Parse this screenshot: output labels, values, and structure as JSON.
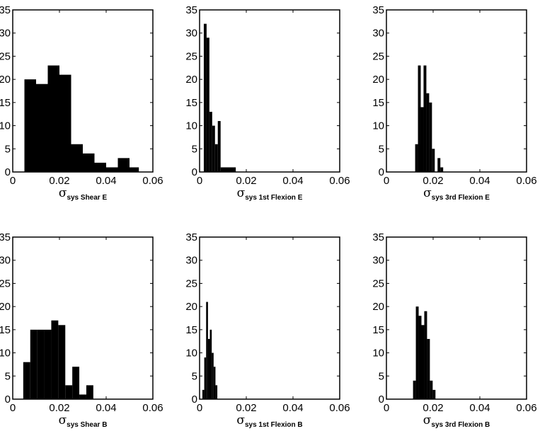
{
  "chart_data": [
    {
      "type": "bar",
      "xlabel_symbol": "σ",
      "xlabel_subscript": "sys Shear E",
      "xlim": [
        0,
        0.06
      ],
      "ylim": [
        0,
        35
      ],
      "xticks": [
        "0",
        "0.02",
        "0.04",
        "0.06"
      ],
      "yticks": [
        "0",
        "5",
        "10",
        "15",
        "20",
        "25",
        "30",
        "35"
      ],
      "bins": [
        {
          "x0": 0.005,
          "x1": 0.01,
          "y": 20
        },
        {
          "x0": 0.01,
          "x1": 0.015,
          "y": 19
        },
        {
          "x0": 0.015,
          "x1": 0.02,
          "y": 23
        },
        {
          "x0": 0.02,
          "x1": 0.025,
          "y": 21
        },
        {
          "x0": 0.025,
          "x1": 0.03,
          "y": 6
        },
        {
          "x0": 0.03,
          "x1": 0.035,
          "y": 4
        },
        {
          "x0": 0.035,
          "x1": 0.04,
          "y": 2
        },
        {
          "x0": 0.04,
          "x1": 0.045,
          "y": 1
        },
        {
          "x0": 0.045,
          "x1": 0.05,
          "y": 3
        },
        {
          "x0": 0.05,
          "x1": 0.054,
          "y": 1
        }
      ]
    },
    {
      "type": "bar",
      "xlabel_symbol": "σ",
      "xlabel_subscript": "sys 1st Flexion E",
      "xlim": [
        0,
        0.06
      ],
      "ylim": [
        0,
        35
      ],
      "xticks": [
        "0",
        "0.02",
        "0.04",
        "0.06"
      ],
      "yticks": [
        "0",
        "5",
        "10",
        "15",
        "20",
        "25",
        "30",
        "35"
      ],
      "bins": [
        {
          "x0": 0.0018,
          "x1": 0.003,
          "y": 32
        },
        {
          "x0": 0.003,
          "x1": 0.0042,
          "y": 29
        },
        {
          "x0": 0.0042,
          "x1": 0.0054,
          "y": 13
        },
        {
          "x0": 0.0054,
          "x1": 0.0066,
          "y": 10
        },
        {
          "x0": 0.0066,
          "x1": 0.0078,
          "y": 6
        },
        {
          "x0": 0.0078,
          "x1": 0.009,
          "y": 11
        },
        {
          "x0": 0.009,
          "x1": 0.0155,
          "y": 1
        }
      ]
    },
    {
      "type": "bar",
      "xlabel_symbol": "σ",
      "xlabel_subscript": "sys 3rd Flexion E",
      "xlim": [
        0,
        0.06
      ],
      "ylim": [
        0,
        35
      ],
      "xticks": [
        "0",
        "0.02",
        "0.04",
        "0.06"
      ],
      "yticks": [
        "0",
        "5",
        "10",
        "15",
        "20",
        "25",
        "30",
        "35"
      ],
      "bins": [
        {
          "x0": 0.0123,
          "x1": 0.0135,
          "y": 6
        },
        {
          "x0": 0.0135,
          "x1": 0.0147,
          "y": 23
        },
        {
          "x0": 0.0147,
          "x1": 0.0159,
          "y": 14
        },
        {
          "x0": 0.0159,
          "x1": 0.0171,
          "y": 23
        },
        {
          "x0": 0.0171,
          "x1": 0.0183,
          "y": 17
        },
        {
          "x0": 0.0183,
          "x1": 0.0195,
          "y": 15
        },
        {
          "x0": 0.0195,
          "x1": 0.0207,
          "y": 5
        },
        {
          "x0": 0.0207,
          "x1": 0.0219,
          "y": 0
        },
        {
          "x0": 0.0219,
          "x1": 0.0231,
          "y": 3
        },
        {
          "x0": 0.0231,
          "x1": 0.0243,
          "y": 1
        }
      ]
    },
    {
      "type": "bar",
      "xlabel_symbol": "σ",
      "xlabel_subscript": "sys Shear B",
      "xlim": [
        0,
        0.06
      ],
      "ylim": [
        0,
        35
      ],
      "xticks": [
        "0",
        "0.02",
        "0.04",
        "0.06"
      ],
      "yticks": [
        "0",
        "5",
        "10",
        "15",
        "20",
        "25",
        "30",
        "35"
      ],
      "bins": [
        {
          "x0": 0.0045,
          "x1": 0.0075,
          "y": 8
        },
        {
          "x0": 0.0075,
          "x1": 0.0105,
          "y": 15
        },
        {
          "x0": 0.0105,
          "x1": 0.0135,
          "y": 15
        },
        {
          "x0": 0.0135,
          "x1": 0.0165,
          "y": 15
        },
        {
          "x0": 0.0165,
          "x1": 0.0195,
          "y": 17
        },
        {
          "x0": 0.0195,
          "x1": 0.0225,
          "y": 16
        },
        {
          "x0": 0.0225,
          "x1": 0.0255,
          "y": 3
        },
        {
          "x0": 0.0255,
          "x1": 0.0285,
          "y": 7
        },
        {
          "x0": 0.0285,
          "x1": 0.0315,
          "y": 1
        },
        {
          "x0": 0.0315,
          "x1": 0.0345,
          "y": 3
        }
      ]
    },
    {
      "type": "bar",
      "xlabel_symbol": "σ",
      "xlabel_subscript": "sys 1st Flexion B",
      "xlim": [
        0,
        0.06
      ],
      "ylim": [
        0,
        35
      ],
      "xticks": [
        "0",
        "0.02",
        "0.04",
        "0.06"
      ],
      "yticks": [
        "0",
        "5",
        "10",
        "15",
        "20",
        "25",
        "30",
        "35"
      ],
      "bins": [
        {
          "x0": 0.0012,
          "x1": 0.002,
          "y": 2
        },
        {
          "x0": 0.002,
          "x1": 0.0028,
          "y": 9
        },
        {
          "x0": 0.0028,
          "x1": 0.0036,
          "y": 21
        },
        {
          "x0": 0.0036,
          "x1": 0.0044,
          "y": 13
        },
        {
          "x0": 0.0044,
          "x1": 0.0052,
          "y": 15
        },
        {
          "x0": 0.0052,
          "x1": 0.006,
          "y": 10
        },
        {
          "x0": 0.006,
          "x1": 0.0068,
          "y": 7
        },
        {
          "x0": 0.0068,
          "x1": 0.0076,
          "y": 3
        }
      ]
    },
    {
      "type": "bar",
      "xlabel_symbol": "σ",
      "xlabel_subscript": "sys 3rd Flexion B",
      "xlim": [
        0,
        0.06
      ],
      "ylim": [
        0,
        35
      ],
      "xticks": [
        "0",
        "0.02",
        "0.04",
        "0.06"
      ],
      "yticks": [
        "0",
        "5",
        "10",
        "15",
        "20",
        "25",
        "30",
        "35"
      ],
      "bins": [
        {
          "x0": 0.0114,
          "x1": 0.0126,
          "y": 4
        },
        {
          "x0": 0.0126,
          "x1": 0.0138,
          "y": 20
        },
        {
          "x0": 0.0138,
          "x1": 0.015,
          "y": 18
        },
        {
          "x0": 0.015,
          "x1": 0.0162,
          "y": 16
        },
        {
          "x0": 0.0162,
          "x1": 0.0174,
          "y": 19
        },
        {
          "x0": 0.0174,
          "x1": 0.0186,
          "y": 13
        },
        {
          "x0": 0.0186,
          "x1": 0.0198,
          "y": 4
        },
        {
          "x0": 0.0198,
          "x1": 0.021,
          "y": 2
        }
      ]
    }
  ]
}
